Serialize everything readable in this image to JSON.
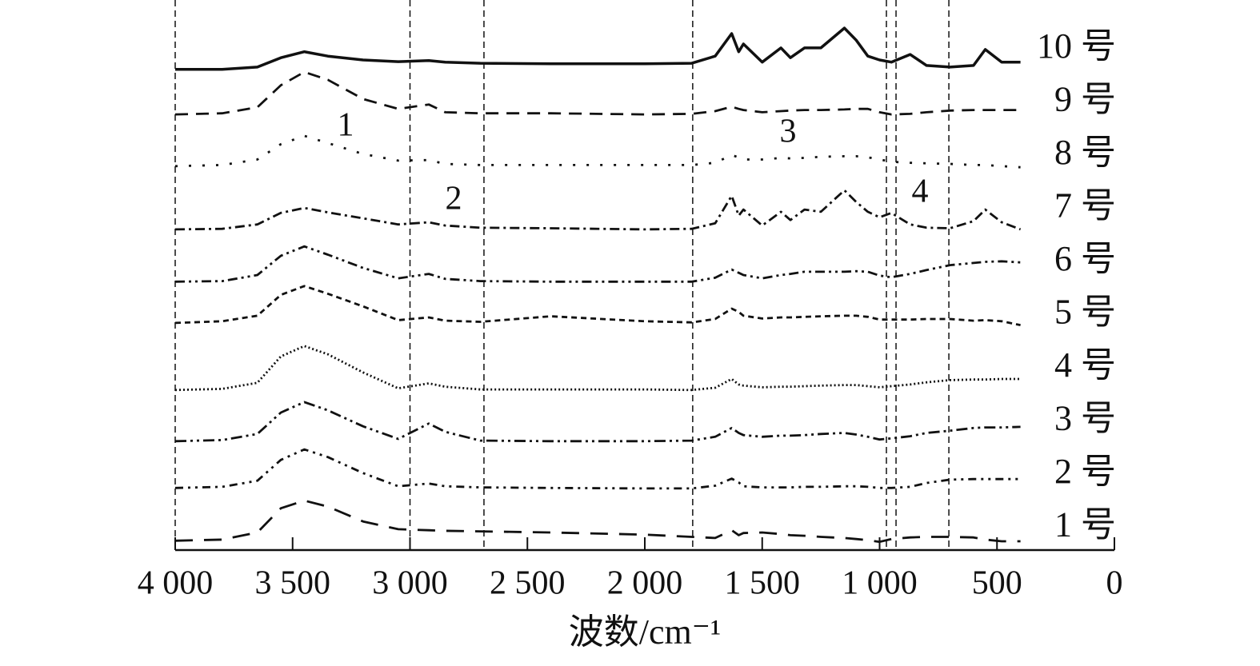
{
  "chart_data": {
    "type": "line",
    "x_label": "波数/cm⁻¹",
    "xlim": [
      4000,
      0
    ],
    "xticks": [
      {
        "value": 4000,
        "label": "4 000"
      },
      {
        "value": 3500,
        "label": "3 500"
      },
      {
        "value": 3000,
        "label": "3 000"
      },
      {
        "value": 2500,
        "label": "2 500"
      },
      {
        "value": 2000,
        "label": "2 000"
      },
      {
        "value": 1500,
        "label": "1 500"
      },
      {
        "value": 1000,
        "label": "1 000"
      },
      500,
      0
    ],
    "ylim": [
      0,
      100
    ],
    "vlines": [
      4000,
      3000,
      2685,
      1796,
      971,
      930,
      705
    ],
    "annotations": [
      "1",
      "2",
      "3",
      "4"
    ],
    "x": [
      4000,
      3800,
      3650,
      3550,
      3450,
      3350,
      3200,
      3050,
      2920,
      2850,
      2700,
      2400,
      2000,
      1800,
      1700,
      1630,
      1600,
      1580,
      1500,
      1420,
      1380,
      1320,
      1250,
      1150,
      1100,
      1050,
      1000,
      950,
      870,
      800,
      700,
      600,
      550,
      480,
      400
    ],
    "series": [
      {
        "name": "10 号",
        "color": "#111",
        "dash": "",
        "values": [
          87.4,
          87.4,
          87.8,
          89.5,
          90.6,
          89.8,
          89.1,
          88.8,
          89.0,
          88.7,
          88.5,
          88.4,
          88.4,
          88.5,
          89.8,
          93.9,
          90.6,
          92.0,
          88.7,
          91.3,
          89.5,
          91.3,
          91.3,
          94.9,
          92.7,
          89.8,
          89.1,
          88.7,
          90.1,
          88.1,
          87.8,
          88.1,
          91.0,
          88.7,
          88.7
        ]
      },
      {
        "name": "9 号",
        "color": "#111",
        "dash": "16 10",
        "values": [
          79.2,
          79.4,
          80.5,
          84.5,
          86.9,
          85.5,
          82.0,
          80.2,
          81.0,
          79.6,
          79.4,
          79.4,
          79.2,
          79.3,
          79.8,
          80.6,
          80.2,
          80.0,
          79.6,
          79.8,
          79.9,
          80.0,
          80.0,
          80.1,
          80.2,
          80.2,
          79.6,
          79.2,
          79.3,
          79.6,
          79.9,
          80.0,
          80.0,
          80.0,
          80.0
        ]
      },
      {
        "name": "8 号",
        "color": "#111",
        "dash": "3 14",
        "values": [
          69.8,
          70.0,
          71.0,
          73.8,
          75.3,
          74.0,
          72.0,
          70.8,
          70.9,
          70.2,
          70.0,
          70.0,
          70.0,
          70.0,
          70.4,
          71.8,
          71.4,
          71.0,
          71.0,
          71.3,
          71.2,
          71.3,
          71.5,
          71.6,
          71.6,
          71.4,
          71.0,
          70.6,
          70.4,
          70.3,
          70.2,
          70.0,
          70.0,
          69.8,
          69.6
        ]
      },
      {
        "name": "7 号",
        "color": "#111",
        "dash": "12 5 3 5",
        "values": [
          58.3,
          58.4,
          59.2,
          61.3,
          62.2,
          61.4,
          60.3,
          59.2,
          59.6,
          59.0,
          58.6,
          58.5,
          58.3,
          58.4,
          59.4,
          64.4,
          60.8,
          61.9,
          59.0,
          61.5,
          60.0,
          61.9,
          61.5,
          65.4,
          63.3,
          61.5,
          60.5,
          61.3,
          59.2,
          58.6,
          58.5,
          59.8,
          61.9,
          59.6,
          58.3
        ]
      },
      {
        "name": "6 号",
        "color": "#111",
        "dash": "12 5 3 5 3 5",
        "values": [
          48.8,
          48.9,
          50.0,
          53.5,
          55.2,
          53.7,
          51.3,
          49.4,
          50.2,
          49.3,
          48.9,
          48.8,
          48.8,
          48.8,
          49.5,
          51.0,
          50.4,
          50.0,
          49.4,
          50.0,
          50.2,
          50.6,
          50.6,
          50.6,
          50.7,
          50.6,
          49.9,
          49.6,
          50.2,
          50.9,
          51.8,
          52.2,
          52.4,
          52.5,
          52.3
        ]
      },
      {
        "name": "5 号",
        "color": "#111",
        "dash": "7 5",
        "values": [
          41.3,
          41.6,
          42.6,
          46.4,
          48.0,
          46.6,
          44.3,
          41.8,
          42.3,
          41.7,
          41.5,
          42.5,
          41.6,
          41.4,
          42.0,
          43.9,
          43.3,
          42.6,
          42.1,
          42.3,
          42.3,
          42.4,
          42.5,
          42.6,
          42.6,
          42.4,
          41.9,
          41.9,
          41.9,
          42.0,
          42.0,
          41.7,
          41.8,
          41.6,
          40.9
        ]
      },
      {
        "name": "4 号",
        "color": "#111",
        "dash": "2 3",
        "values": [
          29.1,
          29.3,
          30.4,
          35.2,
          37.1,
          35.6,
          32.3,
          29.4,
          30.3,
          29.7,
          29.2,
          29.2,
          29.2,
          29.1,
          29.5,
          31.1,
          30.1,
          29.9,
          29.6,
          29.7,
          29.7,
          29.8,
          29.9,
          30.0,
          30.0,
          29.8,
          29.6,
          29.8,
          30.1,
          30.5,
          30.9,
          31.0,
          31.0,
          31.1,
          31.1
        ]
      },
      {
        "name": "3 号",
        "color": "#111",
        "dash": "14 5 3 5 3 5",
        "values": [
          19.8,
          20.0,
          21.1,
          25.0,
          26.9,
          25.4,
          22.5,
          20.2,
          23.0,
          21.5,
          19.9,
          19.8,
          19.8,
          19.9,
          20.6,
          22.2,
          21.3,
          20.9,
          20.6,
          20.8,
          20.8,
          20.9,
          21.1,
          21.3,
          21.0,
          20.6,
          20.1,
          20.3,
          20.7,
          21.3,
          21.7,
          22.2,
          22.3,
          22.3,
          22.4
        ]
      },
      {
        "name": "2 号",
        "color": "#111",
        "dash": "10 6 3 6 3 6",
        "values": [
          11.3,
          11.5,
          12.6,
          16.4,
          18.3,
          16.9,
          14.0,
          11.6,
          12.1,
          11.6,
          11.4,
          11.3,
          11.2,
          11.2,
          11.7,
          13.0,
          12.3,
          11.6,
          11.4,
          11.4,
          11.4,
          11.5,
          11.5,
          11.6,
          11.6,
          11.5,
          11.3,
          11.3,
          11.5,
          12.2,
          12.8,
          12.9,
          12.9,
          12.9,
          12.9
        ]
      },
      {
        "name": "1 号",
        "color": "#111",
        "dash": "22 14",
        "values": [
          1.7,
          1.9,
          3.2,
          7.6,
          9.0,
          7.9,
          5.2,
          3.8,
          3.6,
          3.5,
          3.4,
          3.2,
          2.8,
          2.4,
          2.2,
          3.6,
          2.7,
          3.1,
          3.2,
          2.9,
          2.7,
          2.6,
          2.4,
          2.2,
          2.0,
          1.8,
          1.5,
          2.0,
          2.3,
          2.4,
          2.4,
          2.3,
          1.9,
          1.6,
          1.6
        ]
      }
    ]
  }
}
